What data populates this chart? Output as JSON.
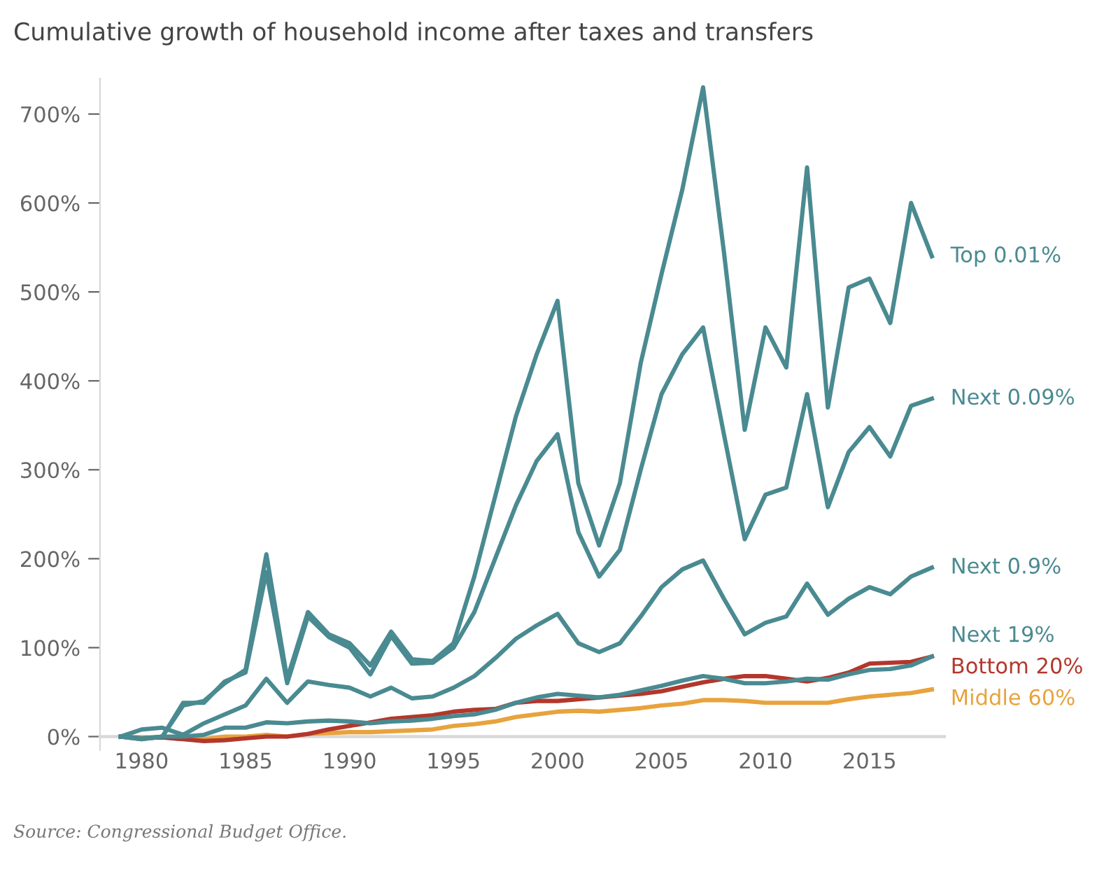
{
  "chart_data": {
    "type": "line",
    "title": "Cumulative growth of household income after taxes and transfers",
    "x": [
      1979,
      1980,
      1981,
      1982,
      1983,
      1984,
      1985,
      1986,
      1987,
      1988,
      1989,
      1990,
      1991,
      1992,
      1993,
      1994,
      1995,
      1996,
      1997,
      1998,
      1999,
      2000,
      2001,
      2002,
      2003,
      2004,
      2005,
      2006,
      2007,
      2008,
      2009,
      2010,
      2011,
      2012,
      2013,
      2014,
      2015,
      2016,
      2017,
      2018
    ],
    "series": [
      {
        "name": "Top 0.01%",
        "color": "#4a8a91",
        "values": [
          0,
          -3,
          0,
          35,
          40,
          60,
          75,
          205,
          65,
          140,
          115,
          105,
          80,
          118,
          87,
          85,
          105,
          180,
          270,
          360,
          430,
          490,
          285,
          215,
          285,
          420,
          520,
          615,
          730,
          545,
          345,
          460,
          415,
          640,
          370,
          505,
          515,
          465,
          600,
          540
        ]
      },
      {
        "name": "Next 0.09%",
        "color": "#4a8a91",
        "values": [
          0,
          -3,
          0,
          38,
          38,
          62,
          72,
          185,
          60,
          135,
          112,
          100,
          70,
          113,
          82,
          83,
          100,
          140,
          200,
          260,
          310,
          340,
          230,
          180,
          210,
          300,
          385,
          430,
          460,
          340,
          222,
          272,
          280,
          385,
          258,
          320,
          348,
          315,
          372,
          380
        ]
      },
      {
        "name": "Next 0.9%",
        "color": "#4a8a91",
        "values": [
          0,
          8,
          10,
          2,
          15,
          25,
          35,
          65,
          38,
          62,
          58,
          55,
          45,
          55,
          43,
          45,
          55,
          68,
          88,
          110,
          125,
          138,
          105,
          95,
          105,
          135,
          168,
          188,
          198,
          155,
          115,
          128,
          135,
          172,
          137,
          155,
          168,
          160,
          180,
          190
        ]
      },
      {
        "name": "Next 19%",
        "color": "#4a8a91",
        "values": [
          0,
          -2,
          0,
          0,
          2,
          10,
          10,
          16,
          15,
          17,
          18,
          17,
          15,
          17,
          18,
          20,
          23,
          25,
          30,
          38,
          44,
          48,
          46,
          44,
          47,
          52,
          57,
          63,
          68,
          65,
          60,
          60,
          62,
          65,
          64,
          70,
          75,
          76,
          80,
          90
        ]
      },
      {
        "name": "Bottom 20%",
        "color": "#b3372c",
        "values": [
          0,
          -2,
          -1,
          -3,
          -5,
          -4,
          -2,
          0,
          0,
          3,
          8,
          12,
          16,
          20,
          22,
          24,
          28,
          30,
          31,
          38,
          40,
          40,
          42,
          44,
          46,
          48,
          51,
          56,
          61,
          65,
          68,
          68,
          65,
          62,
          66,
          72,
          82,
          83,
          84,
          90
        ]
      },
      {
        "name": "Middle 60%",
        "color": "#e8a33d",
        "values": [
          0,
          -1,
          -1,
          -2,
          -3,
          0,
          0,
          2,
          0,
          3,
          4,
          5,
          5,
          6,
          7,
          8,
          12,
          14,
          17,
          22,
          25,
          28,
          29,
          28,
          30,
          32,
          35,
          37,
          41,
          41,
          40,
          38,
          38,
          38,
          38,
          42,
          45,
          47,
          49,
          53
        ]
      }
    ],
    "xlim": [
      1978,
      2018.6
    ],
    "xticks": [
      1980,
      1985,
      1990,
      1995,
      2000,
      2005,
      2010,
      2015
    ],
    "ylim": [
      -15,
      740
    ],
    "yticks": [
      {
        "value": 0,
        "label": "0%"
      },
      {
        "value": 100,
        "label": "100%"
      },
      {
        "value": 200,
        "label": "200%"
      },
      {
        "value": 300,
        "label": "300%"
      },
      {
        "value": 400,
        "label": "400%"
      },
      {
        "value": 500,
        "label": "500%"
      },
      {
        "value": 600,
        "label": "600%"
      },
      {
        "value": 700,
        "label": "700%"
      }
    ],
    "grid": false,
    "legend": false,
    "marker": "none",
    "line_style": "solid",
    "annotations": [
      "Source: Congressional Budget Office."
    ]
  }
}
